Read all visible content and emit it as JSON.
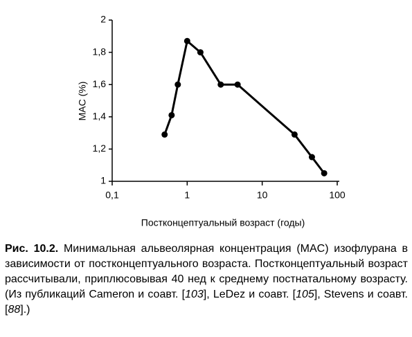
{
  "chart_data": {
    "type": "line",
    "xlabel": "Постконцептуальный возраст (годы)",
    "ylabel": "MAC (%)",
    "x": [
      0.5,
      0.62,
      0.75,
      1.0,
      1.5,
      2.8,
      4.7,
      27,
      46,
      67
    ],
    "values": [
      1.29,
      1.41,
      1.6,
      1.87,
      1.8,
      1.6,
      1.6,
      1.29,
      1.15,
      1.05
    ],
    "color": "#000000",
    "xscale": "log",
    "xlim": [
      0.1,
      100
    ],
    "xticks": [
      {
        "value": 0.1,
        "label": "0,1"
      },
      1,
      10,
      100
    ],
    "ylim": [
      1,
      2
    ],
    "yticks": [
      1,
      {
        "value": 1.2,
        "label": "1,2"
      },
      {
        "value": 1.4,
        "label": "1,4"
      },
      {
        "value": 1.6,
        "label": "1,6"
      },
      {
        "value": 1.8,
        "label": "1,8"
      },
      2
    ],
    "grid": false
  },
  "caption": {
    "label": "Рис. 10.2.",
    "parts": [
      "Минимальная альвеолярная концентрация (MAC) изофлурана в зависимости от постконцептуального возраста. Постконцептуальный возраст рассчитывали, приплюсовывая 40 нед к среднему постнатальному возрасту. (Из публикаций Cameron и соавт. [",
      "103",
      "], LeDez и соавт. [",
      "105",
      "], Stevens и соавт. [",
      "88",
      "].)"
    ]
  }
}
